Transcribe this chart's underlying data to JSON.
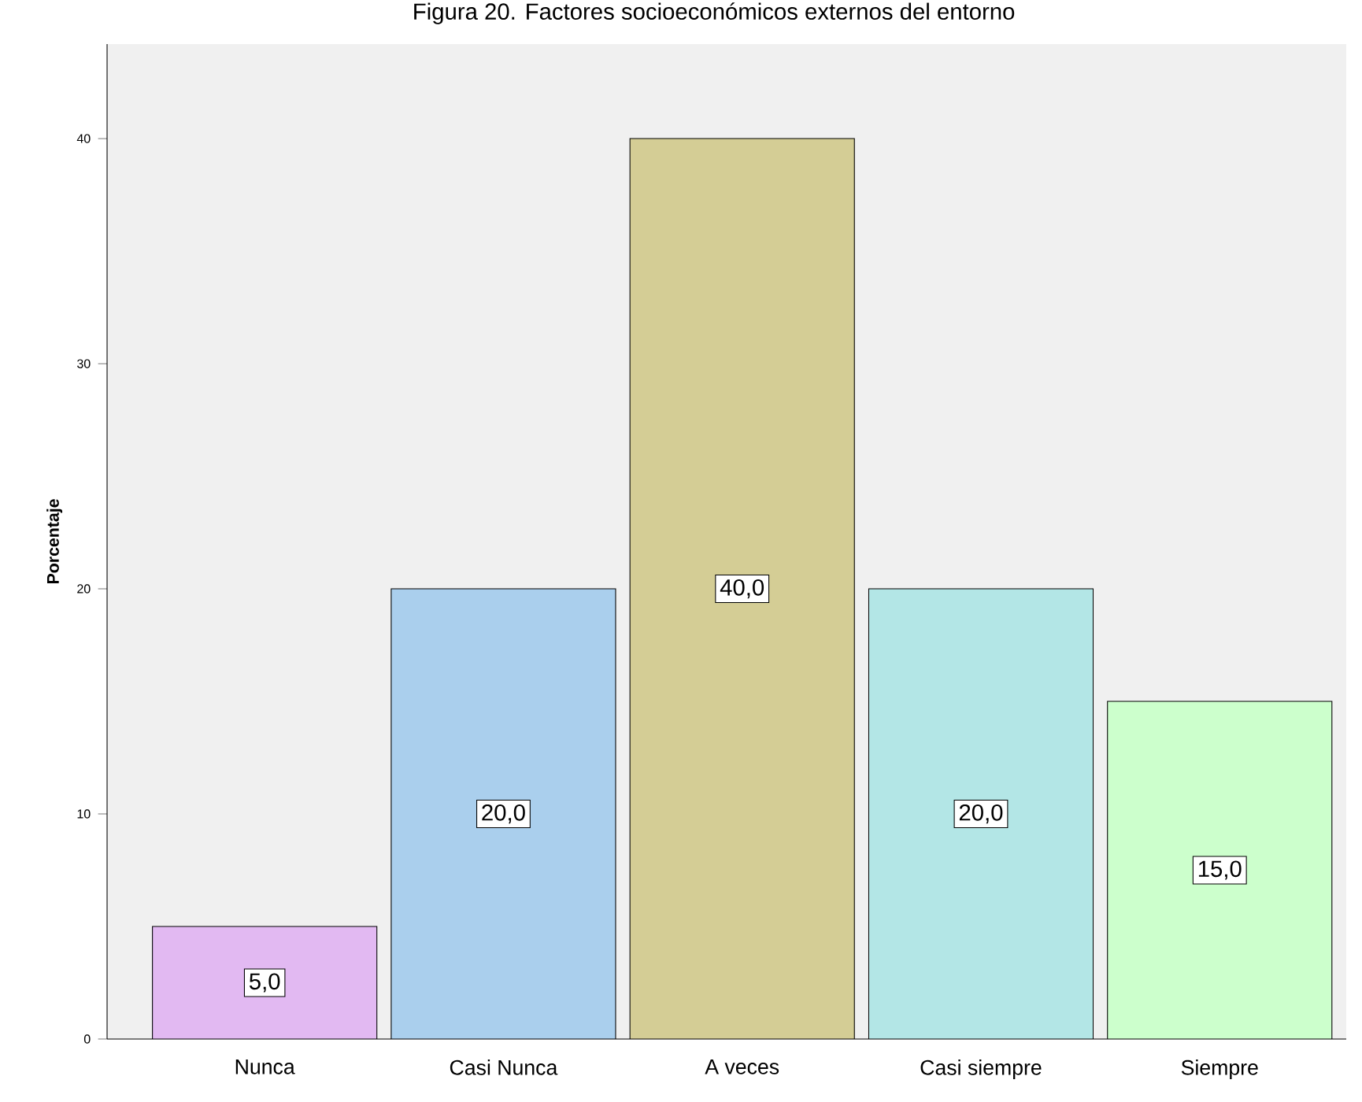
{
  "chart_data": {
    "type": "bar",
    "title": "Figura 20. Factores socioeconómicos externos del entorno",
    "ylabel": "Porcentaje",
    "categories": [
      "Nunca",
      "Casi Nunca",
      "A veces",
      "Casi siempre",
      "Siempre"
    ],
    "values": [
      5,
      20,
      40,
      20,
      15
    ],
    "value_labels": [
      "5,0",
      "20,0",
      "40,0",
      "20,0",
      "15,0"
    ],
    "colors": [
      "#e2b9f2",
      "#aacfed",
      "#d4cd95",
      "#b3e6e6",
      "#ccffcc"
    ],
    "ylim": [
      0,
      44.2
    ],
    "yticks": [
      0,
      10,
      20,
      30,
      40
    ],
    "grid": false
  }
}
